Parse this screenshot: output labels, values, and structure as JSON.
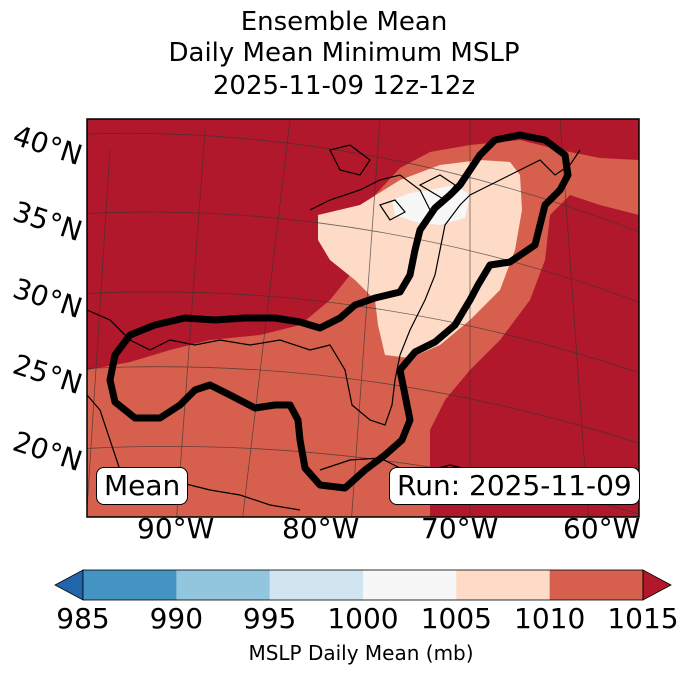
{
  "title": {
    "line1": "Ensemble Mean",
    "line2": "Daily Mean Minimum MSLP",
    "line3": "2025-11-09 12z-12z"
  },
  "map": {
    "lat_labels": [
      "40°N",
      "35°N",
      "30°N",
      "25°N",
      "20°N"
    ],
    "lon_labels": [
      "90°W",
      "80°W",
      "70°W",
      "60°W"
    ],
    "badge_left": "Mean",
    "badge_right": "Run: 2025-11-09",
    "background_color": "#b2182b"
  },
  "colorbar": {
    "label": "MSLP Daily Mean (mb)",
    "ticks": [
      "985",
      "990",
      "995",
      "1000",
      "1005",
      "1010",
      "1015"
    ],
    "colors": [
      "#2166ac",
      "#4393c3",
      "#92c5de",
      "#d1e5f0",
      "#f7f7f7",
      "#fddbc7",
      "#d6604d",
      "#b2182b"
    ]
  }
}
